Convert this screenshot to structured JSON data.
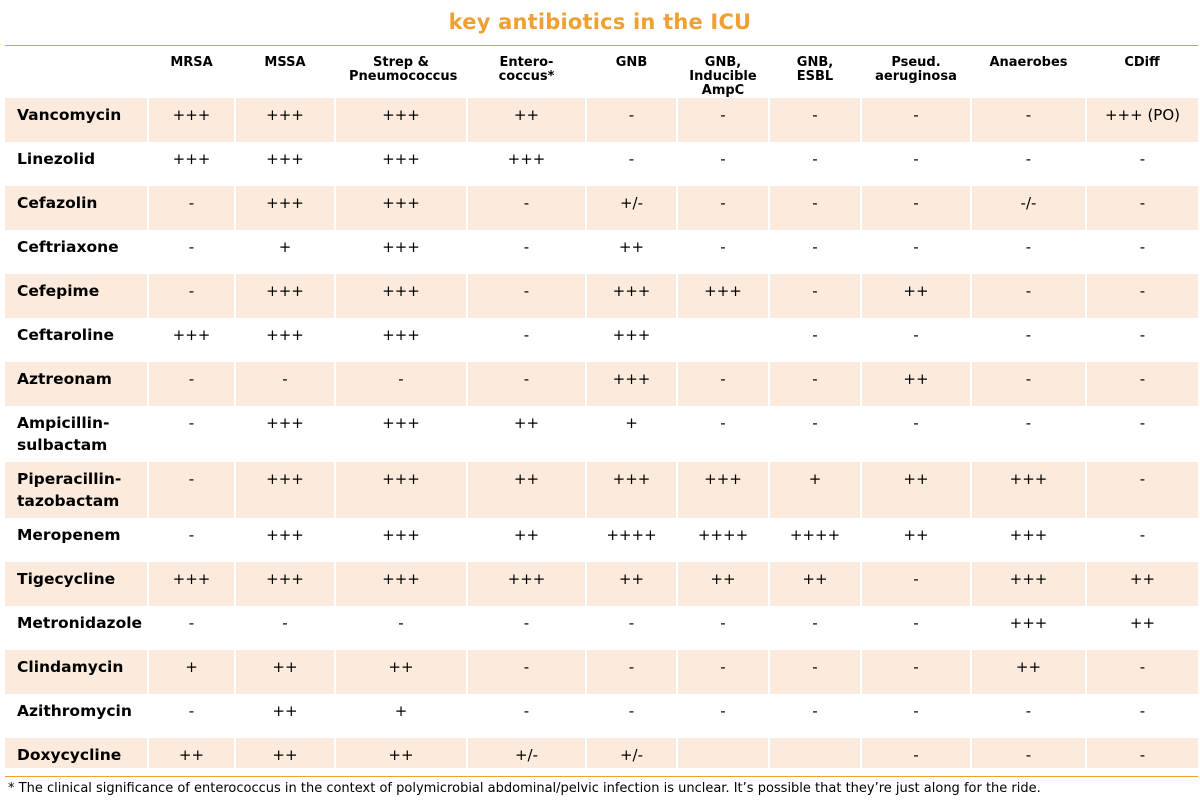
{
  "title": "key antibiotics in the ICU",
  "columns": [
    "",
    "MRSA",
    "MSSA",
    "Strep & Pneumococcus",
    "Entero-coccus*",
    "GNB",
    "GNB, Inducible AmpC",
    "GNB, ESBL",
    "Pseud. aeruginosa",
    "Anaerobes",
    "CDiff"
  ],
  "rows": [
    {
      "drug": "Vancomycin",
      "values": [
        "+++",
        "+++",
        "+++",
        "++",
        "-",
        "-",
        "-",
        "-",
        "-",
        "+++ (PO)"
      ]
    },
    {
      "drug": "Linezolid",
      "values": [
        "+++",
        "+++",
        "+++",
        "+++",
        "-",
        "-",
        "-",
        "-",
        "-",
        "-"
      ]
    },
    {
      "drug": "Cefazolin",
      "values": [
        "-",
        "+++",
        "+++",
        "-",
        "+/-",
        "-",
        "-",
        "-",
        "-/-",
        "-"
      ]
    },
    {
      "drug": "Ceftriaxone",
      "values": [
        "-",
        "+",
        "+++",
        "-",
        "++",
        "-",
        "-",
        "-",
        "-",
        "-"
      ]
    },
    {
      "drug": "Cefepime",
      "values": [
        "-",
        "+++",
        "+++",
        "-",
        "+++",
        "+++",
        "-",
        "++",
        "-",
        "-"
      ]
    },
    {
      "drug": "Ceftaroline",
      "values": [
        "+++",
        "+++",
        "+++",
        "-",
        "+++",
        "",
        "-",
        "-",
        "-",
        "-"
      ]
    },
    {
      "drug": "Aztreonam",
      "values": [
        "-",
        "-",
        "-",
        "-",
        "+++",
        "-",
        "-",
        "++",
        "-",
        "-"
      ]
    },
    {
      "drug": "Ampicillin-sulbactam",
      "values": [
        "-",
        "+++",
        "+++",
        "++",
        "+",
        "-",
        "-",
        "-",
        "-",
        "-"
      ]
    },
    {
      "drug": "Piperacillin-tazobactam",
      "values": [
        "-",
        "+++",
        "+++",
        "++",
        "+++",
        "+++",
        "+",
        "++",
        "+++",
        "-"
      ]
    },
    {
      "drug": "Meropenem",
      "values": [
        "-",
        "+++",
        "+++",
        "++",
        "++++",
        "++++",
        "++++",
        "++",
        "+++",
        "-"
      ]
    },
    {
      "drug": "Tigecycline",
      "values": [
        "+++",
        "+++",
        "+++",
        "+++",
        "++",
        "++",
        "++",
        "-",
        "+++",
        "++"
      ]
    },
    {
      "drug": "Metronidazole",
      "values": [
        "-",
        "-",
        "-",
        "-",
        "-",
        "-",
        "-",
        "-",
        "+++",
        "++"
      ]
    },
    {
      "drug": "Clindamycin",
      "values": [
        "+",
        "++",
        "++",
        "-",
        "-",
        "-",
        "-",
        "-",
        "++",
        "-"
      ]
    },
    {
      "drug": "Azithromycin",
      "values": [
        "-",
        "++",
        "+",
        "-",
        "-",
        "-",
        "-",
        "-",
        "-",
        "-"
      ]
    },
    {
      "drug": "Doxycycline",
      "values": [
        "++",
        "++",
        "++",
        "+/-",
        "+/-",
        "",
        "",
        "-",
        "-",
        "-"
      ]
    }
  ],
  "footnote": "* The clinical significance of enterococcus in the context of polymicrobial abdominal/pelvic infection is unclear.  It’s possible that they’re just along for the ride.",
  "colors": {
    "accent": "#f0a030",
    "row_shade": "#fcebdc"
  }
}
